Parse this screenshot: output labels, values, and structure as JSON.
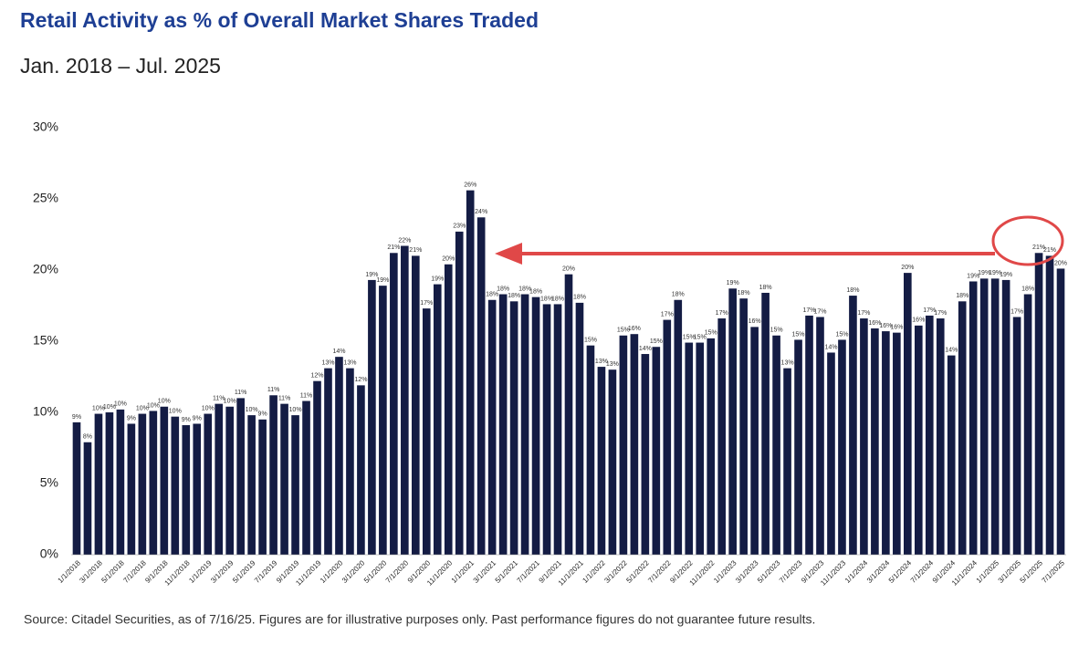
{
  "chart_data": {
    "type": "bar",
    "title": "Retail Activity as % of Overall Market Shares Traded",
    "subtitle": "Jan. 2018 – Jul. 2025",
    "source": "Source: Citadel Securities, as of 7/16/25. Figures are for illustrative purposes only. Past performance figures do not guarantee future results.",
    "color": "#141c44",
    "categories": [
      "1/1/2018",
      null,
      "3/1/2018",
      null,
      "5/1/2018",
      null,
      "7/1/2018",
      null,
      "9/1/2018",
      null,
      "11/1/2018",
      null,
      "1/1/2019",
      null,
      "3/1/2019",
      null,
      "5/1/2019",
      null,
      "7/1/2019",
      null,
      "9/1/2019",
      null,
      "11/1/2019",
      null,
      "1/1/2020",
      null,
      "3/1/2020",
      null,
      "5/1/2020",
      null,
      "7/1/2020",
      null,
      "9/1/2020",
      null,
      "11/1/2020",
      null,
      "1/1/2021",
      null,
      "3/1/2021",
      null,
      "5/1/2021",
      null,
      "7/1/2021",
      null,
      "9/1/2021",
      null,
      "11/1/2021",
      null,
      "1/1/2022",
      null,
      "3/1/2022",
      null,
      "5/1/2022",
      null,
      "7/1/2022",
      null,
      "9/1/2022",
      null,
      "11/1/2022",
      null,
      "1/1/2023",
      null,
      "3/1/2023",
      null,
      "5/1/2023",
      null,
      "7/1/2023",
      null,
      "9/1/2023",
      null,
      "11/1/2023",
      null,
      "1/1/2024",
      null,
      "3/1/2024",
      null,
      "5/1/2024",
      null,
      "7/1/2024",
      null,
      "9/1/2024",
      null,
      "11/1/2024",
      null,
      "1/1/2025",
      null,
      "3/1/2025",
      null,
      "5/1/2025",
      null,
      "7/1/2025"
    ],
    "values": [
      9.3,
      7.9,
      9.9,
      10.0,
      10.2,
      9.2,
      9.9,
      10.1,
      10.4,
      9.7,
      9.1,
      9.2,
      9.9,
      10.6,
      10.4,
      11.0,
      9.8,
      9.5,
      11.2,
      10.6,
      9.8,
      10.8,
      12.2,
      13.1,
      13.9,
      13.1,
      11.9,
      19.3,
      18.9,
      21.2,
      21.7,
      21.0,
      17.3,
      19.0,
      20.4,
      22.7,
      25.6,
      23.7,
      17.9,
      18.3,
      17.8,
      18.3,
      18.1,
      17.6,
      17.6,
      19.7,
      17.7,
      14.7,
      13.2,
      13.0,
      15.4,
      15.5,
      14.1,
      14.6,
      16.5,
      17.9,
      14.9,
      14.9,
      15.2,
      16.6,
      18.7,
      18.0,
      16.0,
      18.4,
      15.4,
      13.1,
      15.1,
      16.8,
      16.7,
      14.2,
      15.1,
      18.2,
      16.6,
      15.9,
      15.7,
      15.6,
      19.8,
      16.1,
      16.8,
      16.6,
      14.0,
      17.8,
      19.2,
      19.4,
      19.4,
      19.3,
      16.7,
      18.3,
      21.2,
      21.0,
      20.1
    ],
    "value_labels": [
      "9%",
      "8%",
      "10%",
      "10%",
      "10%",
      "9%",
      "10%",
      "10%",
      "10%",
      "10%",
      "9%",
      "9%",
      "10%",
      "11%",
      "10%",
      "11%",
      "10%",
      "9%",
      "11%",
      "11%",
      "10%",
      "11%",
      "12%",
      "13%",
      "14%",
      "13%",
      "12%",
      "19%",
      "19%",
      "21%",
      "22%",
      "21%",
      "17%",
      "19%",
      "20%",
      "23%",
      "26%",
      "24%",
      "18%",
      "18%",
      "18%",
      "18%",
      "18%",
      "18%",
      "18%",
      "20%",
      "18%",
      "15%",
      "13%",
      "13%",
      "15%",
      "16%",
      "14%",
      "15%",
      "17%",
      "18%",
      "15%",
      "15%",
      "15%",
      "17%",
      "19%",
      "18%",
      "16%",
      "18%",
      "15%",
      "13%",
      "15%",
      "17%",
      "17%",
      "14%",
      "15%",
      "18%",
      "17%",
      "16%",
      "16%",
      "16%",
      "20%",
      "16%",
      "17%",
      "17%",
      "14%",
      "18%",
      "19%",
      "19%",
      "19%",
      "19%",
      "17%",
      "18%",
      "21%",
      "21%",
      "20%"
    ],
    "ylim": [
      0,
      30
    ],
    "yticks": [
      {
        "value": 0,
        "label": "0%"
      },
      {
        "value": 5,
        "label": "5%"
      },
      {
        "value": 10,
        "label": "10%"
      },
      {
        "value": 15,
        "label": "15%"
      },
      {
        "value": 20,
        "label": "20%"
      },
      {
        "value": 25,
        "label": "25%"
      },
      {
        "value": 30,
        "label": "30%"
      }
    ],
    "grid": false
  }
}
